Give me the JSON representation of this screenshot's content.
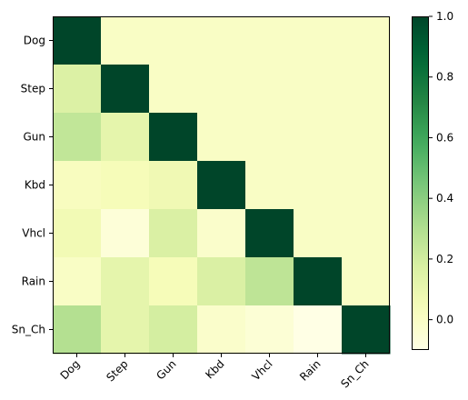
{
  "chart_data": {
    "type": "heatmap",
    "title": "",
    "xlabel": "",
    "ylabel": "",
    "x_categories": [
      "Dog",
      "Step",
      "Gun",
      "Kbd",
      "Vhcl",
      "Rain",
      "Sn_Ch"
    ],
    "y_categories": [
      "Dog",
      "Step",
      "Gun",
      "Kbd",
      "Vhcl",
      "Rain",
      "Sn_Ch"
    ],
    "values": [
      [
        1.0,
        0.0,
        0.0,
        0.0,
        0.0,
        0.0,
        0.0
      ],
      [
        0.16,
        1.0,
        0.0,
        0.0,
        0.0,
        0.0,
        0.0
      ],
      [
        0.25,
        0.12,
        1.0,
        0.0,
        0.0,
        0.0,
        0.0
      ],
      [
        0.02,
        0.04,
        0.07,
        1.0,
        0.0,
        0.0,
        0.0
      ],
      [
        0.06,
        -0.06,
        0.17,
        -0.02,
        1.0,
        0.0,
        0.0
      ],
      [
        0.0,
        0.12,
        0.04,
        0.17,
        0.26,
        1.0,
        0.0
      ],
      [
        0.29,
        0.12,
        0.19,
        -0.02,
        -0.05,
        -0.1,
        1.0
      ]
    ],
    "colormap": "YlGn",
    "vmin": -0.1,
    "vmax": 1.0,
    "colorbar": {
      "ticks": [
        0.0,
        0.2,
        0.4,
        0.6,
        0.8,
        1.0
      ],
      "tick_labels": [
        "0.0",
        "0.2",
        "0.4",
        "0.6",
        "0.8",
        "1.0"
      ]
    },
    "grid": false,
    "legend": "colorbar-right"
  }
}
